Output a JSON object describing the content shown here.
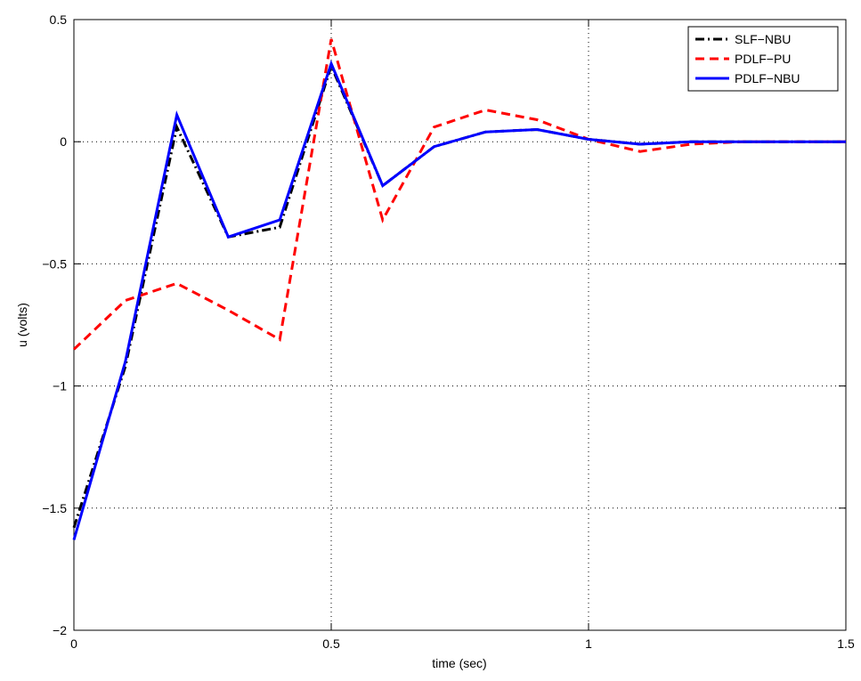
{
  "chart_data": {
    "type": "line",
    "x_label": "time (sec)",
    "y_label": "u (volts)",
    "x": [
      0,
      0.1,
      0.2,
      0.3,
      0.4,
      0.5,
      0.6,
      0.7,
      0.8,
      0.9,
      1.0,
      1.1,
      1.2,
      1.3,
      1.4,
      1.5
    ],
    "series": [
      {
        "name": "SLF−NBU",
        "color": "#000000",
        "dash": "dashdot",
        "values": [
          -1.58,
          -0.92,
          0.06,
          -0.39,
          -0.35,
          0.31,
          -0.18,
          -0.02,
          0.04,
          0.05,
          0.01,
          -0.01,
          0,
          0,
          0,
          0
        ]
      },
      {
        "name": "PDLF−PU",
        "color": "#ff0000",
        "dash": "dashed",
        "values": [
          -0.85,
          -0.65,
          -0.58,
          -0.69,
          -0.81,
          0.42,
          -0.32,
          0.06,
          0.13,
          0.09,
          0.01,
          -0.04,
          -0.01,
          0,
          0,
          0
        ]
      },
      {
        "name": "PDLF−NBU",
        "color": "#0000ff",
        "dash": "solid",
        "values": [
          -1.63,
          -0.9,
          0.11,
          -0.39,
          -0.32,
          0.32,
          -0.18,
          -0.02,
          0.04,
          0.05,
          0.01,
          -0.01,
          0,
          0,
          0,
          0
        ]
      }
    ],
    "xlim": [
      0,
      1.5
    ],
    "xticks": [
      0,
      0.5,
      1,
      1.5
    ],
    "ylim": [
      -2,
      0.5
    ],
    "yticks": [
      {
        "value": -2,
        "label": "−2"
      },
      {
        "value": -1.5,
        "label": "−1.5"
      },
      {
        "value": -1,
        "label": "−1"
      },
      {
        "value": -0.5,
        "label": "−0.5"
      },
      0,
      0.5
    ],
    "grid": true,
    "legend": "upper-right"
  }
}
